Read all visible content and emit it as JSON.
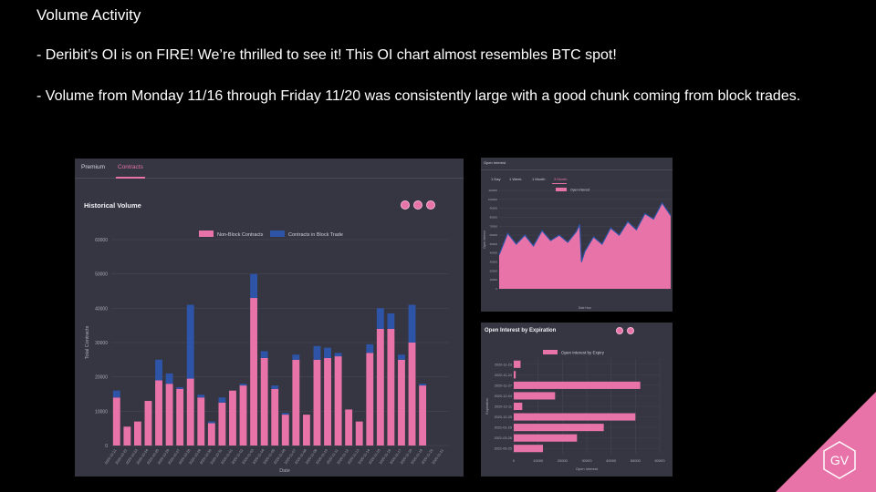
{
  "slide": {
    "title": "Volume Activity",
    "bullets": [
      "- Deribit’s OI is on FIRE! We’re thrilled to see it! This OI chart almost resembles BTC spot!",
      "- Volume from Monday 11/16 through Friday 11/20 was consistently large with a good chunk coming from block trades."
    ],
    "logo_text": "GV"
  },
  "colors": {
    "pink": "#e773a9",
    "blue": "#2d54a6",
    "panel": "#363643",
    "grid": "#4a4a58",
    "axis_text": "#a9a9b6"
  },
  "main_panel": {
    "tabs": [
      "Premium",
      "Contracts"
    ],
    "active_tab": "Contracts",
    "icons": [
      "refresh-icon",
      "settings-icon",
      "download-icon"
    ]
  },
  "oi_panel": {
    "header": "Open Interest",
    "tabs": [
      "1 Day",
      "1 Week",
      "1 Month",
      "3 Month"
    ],
    "active_tab": "3 Month"
  },
  "exp_panel": {
    "icons": [
      "refresh-icon",
      "settings-icon"
    ]
  },
  "chart_data": [
    {
      "type": "bar",
      "stacked": true,
      "title": "Historical Volume",
      "xlabel": "Date",
      "ylabel": "Total Contracts",
      "ylim": [
        0,
        60000
      ],
      "yticks": [
        0,
        10000,
        20000,
        30000,
        40000,
        50000,
        60000
      ],
      "legend": "top",
      "grid": true,
      "categories": [
        "2020-10-21",
        "2020-10-22",
        "2020-10-23",
        "2020-10-24",
        "2020-10-25",
        "2020-10-26",
        "2020-10-27",
        "2020-10-28",
        "2020-10-29",
        "2020-10-30",
        "2020-10-31",
        "2020-11-01",
        "2020-11-02",
        "2020-11-03",
        "2020-11-04",
        "2020-11-05",
        "2020-11-06",
        "2020-11-07",
        "2020-11-08",
        "2020-11-09",
        "2020-11-10",
        "2020-11-11",
        "2020-11-12",
        "2020-11-13",
        "2020-11-14",
        "2020-11-15",
        "2020-11-16",
        "2020-11-17",
        "2020-11-18",
        "2020-11-19",
        "2020-11-20",
        "2020-11-21"
      ],
      "series": [
        {
          "name": "Non-Block Contracts",
          "color": "#e773a9",
          "values": [
            14000,
            5500,
            7000,
            13000,
            19000,
            18000,
            16500,
            19500,
            14000,
            6500,
            12500,
            16000,
            17500,
            43000,
            25500,
            16500,
            9000,
            25000,
            9000,
            25000,
            25500,
            26000,
            10500,
            7000,
            27000,
            34000,
            34000,
            25000,
            30000,
            17500,
            0,
            0
          ]
        },
        {
          "name": "Contracts in Block Trade",
          "color": "#2d54a6",
          "values": [
            2000,
            0,
            0,
            0,
            6000,
            3000,
            500,
            21500,
            800,
            500,
            1500,
            0,
            500,
            7000,
            2000,
            1000,
            500,
            1500,
            0,
            4000,
            3000,
            1000,
            0,
            0,
            2500,
            6000,
            4500,
            1500,
            11000,
            500,
            0,
            0
          ]
        }
      ]
    },
    {
      "type": "area",
      "header": "Open Interest",
      "xlabel": "Date Hour",
      "ylabel": "Open Interest",
      "ylim": [
        0,
        110000
      ],
      "yticks": [
        0,
        10000,
        20000,
        30000,
        40000,
        50000,
        60000,
        70000,
        80000,
        90000,
        100000,
        110000
      ],
      "series": [
        {
          "name": "Open Interest",
          "color": "#e773a9",
          "x": [
            0,
            5,
            10,
            15,
            20,
            25,
            30,
            35,
            40,
            45,
            47,
            48,
            50,
            55,
            60,
            65,
            70,
            75,
            80,
            85,
            90,
            95,
            100
          ],
          "values": [
            38000,
            62000,
            50000,
            60000,
            48000,
            65000,
            54000,
            60000,
            52000,
            64000,
            72000,
            30000,
            42000,
            58000,
            50000,
            68000,
            60000,
            75000,
            66000,
            84000,
            78000,
            96000,
            82000
          ]
        }
      ]
    },
    {
      "type": "bar",
      "orientation": "horizontal",
      "title": "Open Interest by Expiration",
      "xlabel": "Open Interest",
      "ylabel": "Expiration",
      "xlim": [
        0,
        60000
      ],
      "xticks": [
        0,
        10000,
        20000,
        30000,
        40000,
        50000,
        60000
      ],
      "categories": [
        "2020-11-23",
        "2020-11-24",
        "2020-11-27",
        "2020-12-04",
        "2020-12-11",
        "2020-12-25",
        "2021-01-29",
        "2021-03-26",
        "2021-06-25"
      ],
      "series": [
        {
          "name": "Open Interest by Expiry",
          "color": "#e773a9",
          "values": [
            2800,
            800,
            52000,
            17000,
            3500,
            50000,
            37000,
            26000,
            12000
          ]
        }
      ]
    }
  ]
}
